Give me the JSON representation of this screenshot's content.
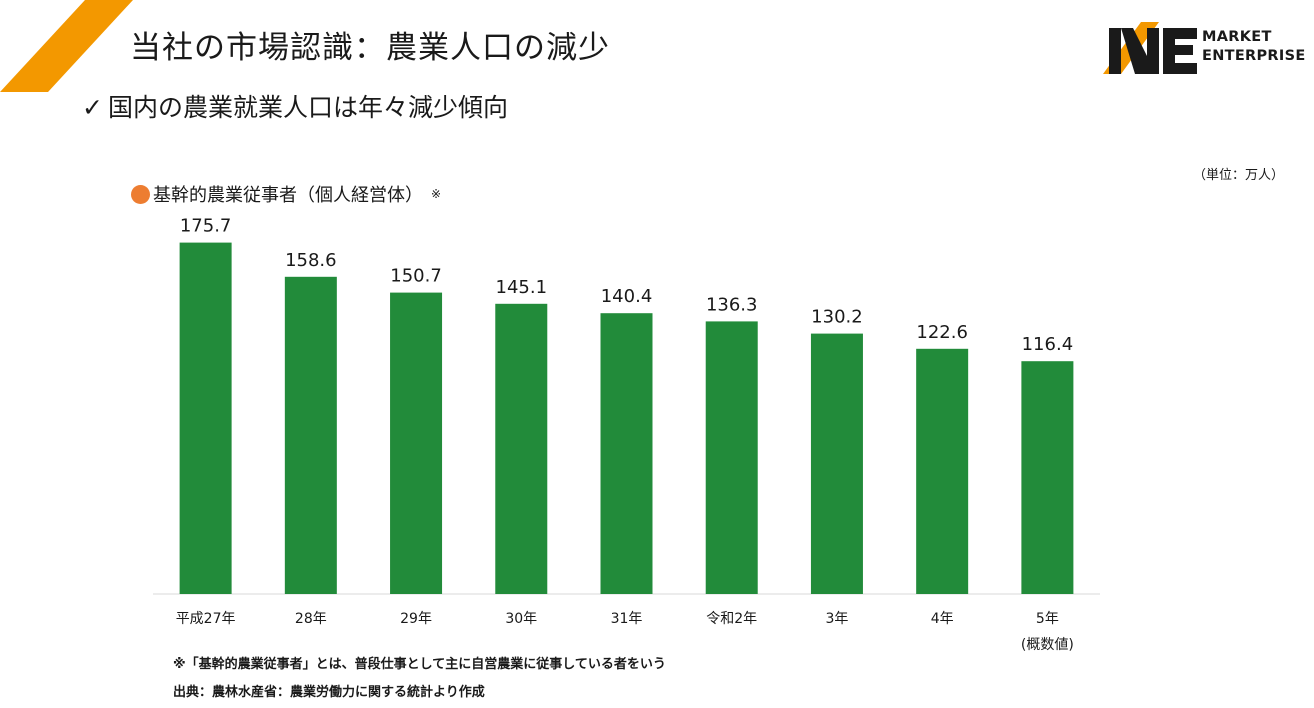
{
  "header": {
    "title": "当社の市場認識：農業人口の減少",
    "subtitle_check": "✓",
    "subtitle": "国内の農業就業人口は年々減少傾向"
  },
  "logo": {
    "line1": "MARKET",
    "line2": "ENTERPRISE",
    "colors": {
      "orange": "#F39800",
      "black": "#1A1A1A"
    }
  },
  "accent_color": "#F39800",
  "unit_label": "（単位：万人）",
  "footnotes": {
    "definition": "※「基幹的農業従事者」とは、普段仕事として主に自営農業に従事している者をいう",
    "source": "出典：農林水産省：農業労働力に関する統計より作成"
  },
  "chart_data": {
    "type": "bar",
    "title": "",
    "series": [
      {
        "name": "基幹的農業従事者（個人経営体）",
        "name_mark": "※",
        "color": "#228B3A",
        "marker_color": "#ED7D31",
        "values": [
          175.7,
          158.6,
          150.7,
          145.1,
          140.4,
          136.3,
          130.2,
          122.6,
          116.4
        ]
      }
    ],
    "categories": [
      "平成27年",
      "28年",
      "29年",
      "30年",
      "31年",
      "令和2年",
      "3年",
      "4年",
      "5年"
    ],
    "category_sublabels": [
      "",
      "",
      "",
      "",
      "",
      "",
      "",
      "",
      "(概数値)"
    ],
    "data_labels": [
      "175.7",
      "158.6",
      "150.7",
      "145.1",
      "140.4",
      "136.3",
      "130.2",
      "122.6",
      "116.4"
    ],
    "xlabel": "",
    "ylabel": "",
    "ylim": [
      0,
      200
    ],
    "y_axis_visible": false,
    "grid": false,
    "legend": "top-left"
  }
}
